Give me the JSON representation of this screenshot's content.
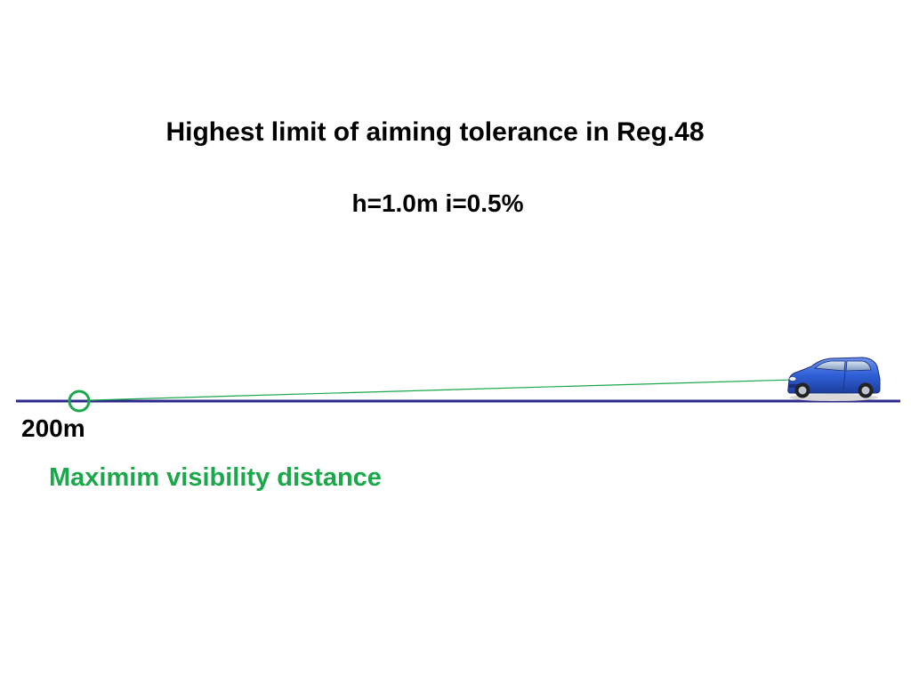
{
  "title": "Highest limit of aiming tolerance in Reg.48",
  "parameters": "h=1.0m i=0.5%",
  "distance_label": "200m",
  "caption": "Maximim visibility distance",
  "colors": {
    "road": "#2e2a8c",
    "beam": "#1aa84a",
    "marker": "#1aa84a",
    "caption": "#1aa84a",
    "car_body": "#2f5fd6"
  },
  "icons": {
    "vehicle": "car-icon",
    "target": "circle-marker-icon"
  }
}
